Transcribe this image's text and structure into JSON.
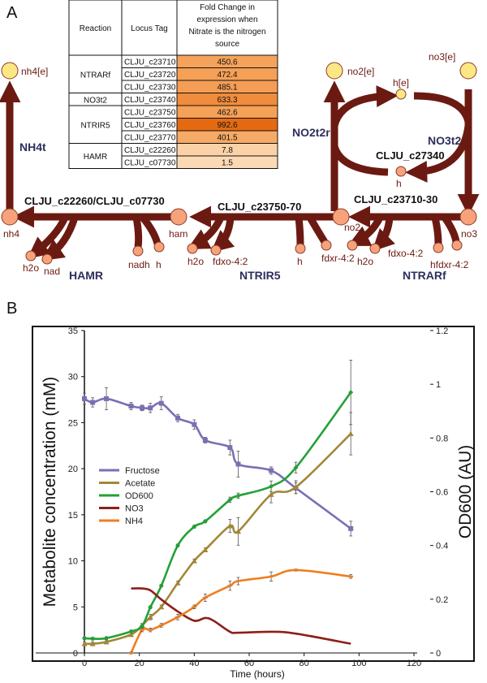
{
  "panel_a": {
    "letter": "A",
    "metabolites": {
      "nh4e": "nh4[e]",
      "no2e": "no2[e]",
      "no3e": "no3[e]",
      "he": "h[e]",
      "h_mid": "h",
      "nh4": "nh4",
      "ham": "ham",
      "no2": "no2",
      "no3": "no3",
      "h2o_1": "h2o",
      "nad": "nad",
      "nadh": "nadh",
      "h_1": "h",
      "h2o_2": "h2o",
      "fdxo_1": "fdxo-4:2",
      "h_2": "h",
      "fdxr_1": "fdxr-4:2",
      "h2o_3": "h2o",
      "fdxo_2": "fdxo-4:2",
      "hfdxr": "hfdxr-4:2"
    },
    "genes": {
      "g1": "CLJU_c22260/CLJU_c07730",
      "g2": "CLJU_c23750-70",
      "g3": "CLJU_c23710-30",
      "g4": "CLJU_c27340"
    },
    "reactions": {
      "nh4t": "NH4t",
      "no2t2r": "NO2t2r",
      "no3t2": "NO3t2",
      "hamr": "HAMR",
      "ntrir5": "NTRIR5",
      "ntrarf": "NTRARf"
    },
    "table": {
      "headers": [
        "Reaction",
        "Locus Tag",
        "Fold Change in",
        "expression when",
        "Nitrate is the nitrogen",
        "source"
      ],
      "groups": [
        {
          "reaction": "NTRARf",
          "rows": [
            {
              "locus": "CLJU_c23710",
              "value": "450.6",
              "color": "#f5a35a"
            },
            {
              "locus": "CLJU_c23720",
              "value": "472.4",
              "color": "#f5a057"
            },
            {
              "locus": "CLJU_c23730",
              "value": "485.1",
              "color": "#f49e55"
            }
          ]
        },
        {
          "reaction": "NO3t2",
          "rows": [
            {
              "locus": "CLJU_c23740",
              "value": "633.3",
              "color": "#f18c3c"
            }
          ]
        },
        {
          "reaction": "NTRIR5",
          "rows": [
            {
              "locus": "CLJU_c23750",
              "value": "462.6",
              "color": "#f5a158"
            },
            {
              "locus": "CLJU_c23760",
              "value": "992.6",
              "color": "#e46a12"
            },
            {
              "locus": "CLJU_c23770",
              "value": "401.5",
              "color": "#f6aa66"
            }
          ]
        },
        {
          "reaction": "HAMR",
          "rows": [
            {
              "locus": "CLJU_c22260",
              "value": "7.8",
              "color": "#fbd2a8"
            },
            {
              "locus": "CLJU_c07730",
              "value": "1.5",
              "color": "#fcd9b5"
            }
          ]
        }
      ]
    }
  },
  "chart_data": {
    "type": "line",
    "panel_letter": "B",
    "xlabel": "Time (hours)",
    "ylabel_left": "Metabolite concentration (mM)",
    "ylabel_right": "OD600 (AU)",
    "xlim": [
      0,
      120
    ],
    "ylim_left": [
      0,
      35
    ],
    "ylim_right": [
      0,
      1.2
    ],
    "xticks": [
      "0",
      "20",
      "40",
      "60",
      "80",
      "100",
      "120"
    ],
    "yticks_left": [
      "0",
      "5",
      "10",
      "15",
      "20",
      "25",
      "30",
      "35"
    ],
    "yticks_right": [
      "0",
      "0.2",
      "0.4",
      "0.6",
      "0.8",
      "1",
      "1.2"
    ],
    "legend_placement": "center-left",
    "series": [
      {
        "name": "Fructose",
        "axis": "left",
        "color": "#7b6fb5",
        "marker": "square",
        "x": [
          0,
          3,
          8,
          17,
          21,
          24,
          28,
          34,
          40,
          44,
          53,
          56,
          68,
          77,
          97
        ],
        "y": [
          27.6,
          27.2,
          27.6,
          26.8,
          26.6,
          26.6,
          27.1,
          25.5,
          24.8,
          23.1,
          22.3,
          20.5,
          19.8,
          17.9,
          13.5
        ],
        "err": [
          0.6,
          0.5,
          1.2,
          0.4,
          0.3,
          0.5,
          0.7,
          0.4,
          0.5,
          0.3,
          0.8,
          1.4,
          0.4,
          0.6,
          0.8
        ]
      },
      {
        "name": "Acetate",
        "axis": "left",
        "color": "#a28738",
        "marker": "triangle",
        "x": [
          0,
          3,
          8,
          17,
          21,
          24,
          28,
          34,
          40,
          44,
          53,
          56,
          68,
          77,
          97
        ],
        "y": [
          1.0,
          1.0,
          1.2,
          2.0,
          3.0,
          3.9,
          5.0,
          7.6,
          10.0,
          11.2,
          13.8,
          13.2,
          17.2,
          18.0,
          23.8
        ],
        "err": [
          0.2,
          0.2,
          0.2,
          0.2,
          0.2,
          0.3,
          0.2,
          0.2,
          0.2,
          0.2,
          0.7,
          1.5,
          0.9,
          0.7,
          2.3
        ]
      },
      {
        "name": "OD600",
        "axis": "right",
        "color": "#23a136",
        "marker": "diamond",
        "x": [
          0,
          3,
          8,
          17,
          21,
          24,
          28,
          34,
          40,
          44,
          53,
          56,
          68,
          77,
          97
        ],
        "y": [
          0.055,
          0.053,
          0.055,
          0.08,
          0.1,
          0.17,
          0.25,
          0.4,
          0.47,
          0.49,
          0.57,
          0.585,
          0.62,
          0.69,
          0.97
        ],
        "err": [
          0.005,
          0.005,
          0.005,
          0.005,
          0.005,
          0.005,
          0.005,
          0.005,
          0.005,
          0.005,
          0.01,
          0.01,
          0.02,
          0.02,
          0.12
        ]
      },
      {
        "name": "NO3",
        "axis": "left",
        "color": "#8c1f18",
        "marker": "none",
        "x": [
          17,
          21,
          24,
          28,
          34,
          40,
          44,
          47,
          53,
          56,
          68,
          77,
          97
        ],
        "y": [
          7.0,
          7.0,
          6.8,
          5.8,
          4.5,
          3.5,
          3.8,
          3.5,
          2.3,
          2.2,
          2.3,
          2.1,
          1.0
        ],
        "err": []
      },
      {
        "name": "NH4",
        "axis": "left",
        "color": "#f07e1e",
        "marker": "dash",
        "x": [
          17,
          21,
          24,
          28,
          34,
          40,
          44,
          53,
          56,
          68,
          77,
          97
        ],
        "y": [
          0,
          2.5,
          2.5,
          3.0,
          3.9,
          5.0,
          6.0,
          7.3,
          7.8,
          8.3,
          9.0,
          8.3
        ],
        "err": [
          0.1,
          0.2,
          0.2,
          0.2,
          0.3,
          0.2,
          0.4,
          0.5,
          0.4,
          0.5,
          0.1,
          0.2
        ]
      }
    ]
  }
}
